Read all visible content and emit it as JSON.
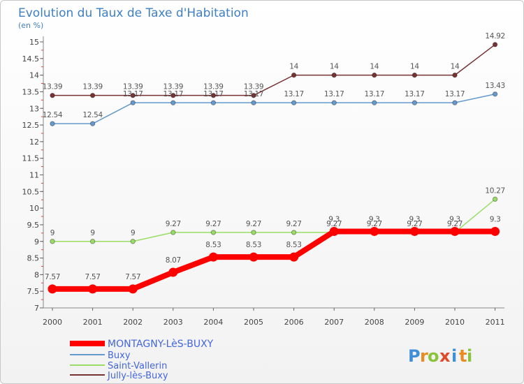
{
  "chart_data": {
    "type": "line",
    "title": "Evolution du Taux de Taxe d'Habitation",
    "subtitle": "(en %)",
    "xlabel": "",
    "ylabel": "",
    "x": [
      "2000",
      "2001",
      "2002",
      "2003",
      "2004",
      "2005",
      "2006",
      "2007",
      "2008",
      "2009",
      "2010",
      "2011"
    ],
    "yticks": [
      "7",
      "7.5",
      "8",
      "8.5",
      "9",
      "9.5",
      "10",
      "10.5",
      "11",
      "11.5",
      "12",
      "12.5",
      "13",
      "13.5",
      "14",
      "14.5",
      "15"
    ],
    "ylim": [
      7,
      15
    ],
    "grid": false,
    "legend_position": "bottom-left",
    "series": [
      {
        "name": "MONTAGNY-LèS-BUXY",
        "color": "#ff0000",
        "values": [
          7.57,
          7.57,
          7.57,
          8.07,
          8.53,
          8.53,
          8.53,
          9.3,
          9.3,
          9.3,
          9.3,
          9.3
        ],
        "labels": [
          "7.57",
          "7.57",
          "7.57",
          "8.07",
          "8.53",
          "8.53",
          "8.53",
          "9.3",
          "9.3",
          "9.3",
          "9.3",
          "9.3"
        ]
      },
      {
        "name": "Buxy",
        "color": "#6699cc",
        "values": [
          12.54,
          12.54,
          13.17,
          13.17,
          13.17,
          13.17,
          13.17,
          13.17,
          13.17,
          13.17,
          13.17,
          13.43
        ],
        "labels": [
          "12.54",
          "12.54",
          "13.17",
          "13.17",
          "13.17",
          "13.17",
          "13.17",
          "13.17",
          "13.17",
          "13.17",
          "13.17",
          "13.43"
        ]
      },
      {
        "name": "Saint-Vallerin",
        "color": "#99dd66",
        "values": [
          9,
          9,
          9,
          9.27,
          9.27,
          9.27,
          9.27,
          9.27,
          9.27,
          9.27,
          9.27,
          10.27
        ],
        "labels": [
          "9",
          "9",
          "9",
          "9.27",
          "9.27",
          "9.27",
          "9.27",
          "9.27",
          "9.27",
          "9.27",
          "9.27",
          "10.27"
        ]
      },
      {
        "name": "Jully-lès-Buxy",
        "color": "#773333",
        "values": [
          13.39,
          13.39,
          13.39,
          13.39,
          13.39,
          13.39,
          14,
          14,
          14,
          14,
          14,
          14.92
        ],
        "labels": [
          "13.39",
          "13.39",
          "13.39",
          "13.39",
          "13.39",
          "13.39",
          "14",
          "14",
          "14",
          "14",
          "14",
          "14.92"
        ]
      }
    ]
  },
  "brand": {
    "letters": [
      "P",
      "r",
      "o",
      "x",
      "i",
      "t",
      "i"
    ]
  }
}
